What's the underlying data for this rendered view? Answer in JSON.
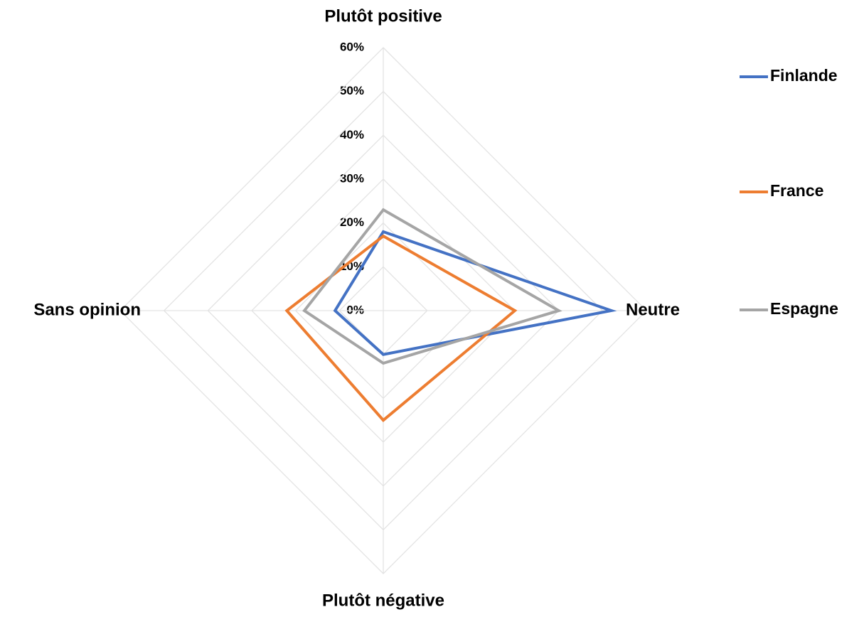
{
  "chart_data": {
    "type": "radar",
    "categories": [
      "Plutôt positive",
      "Neutre",
      "Plutôt négative",
      "Sans opinion"
    ],
    "series": [
      {
        "name": "Finlande",
        "color": "#4472c4",
        "values": [
          18,
          52,
          10,
          11
        ]
      },
      {
        "name": "France",
        "color": "#ed7d31",
        "values": [
          17,
          30,
          25,
          22
        ]
      },
      {
        "name": "Espagne",
        "color": "#a5a5a5",
        "values": [
          23,
          40,
          12,
          18
        ]
      }
    ],
    "rlim": [
      0,
      60
    ],
    "rticks": [
      {
        "value": 0,
        "label": "0%"
      },
      {
        "value": 10,
        "label": "10%"
      },
      {
        "value": 20,
        "label": "20%"
      },
      {
        "value": 30,
        "label": "30%"
      },
      {
        "value": 40,
        "label": "40%"
      },
      {
        "value": 50,
        "label": "50%"
      },
      {
        "value": 60,
        "label": "60%"
      }
    ],
    "grid": true,
    "legend": "right"
  }
}
